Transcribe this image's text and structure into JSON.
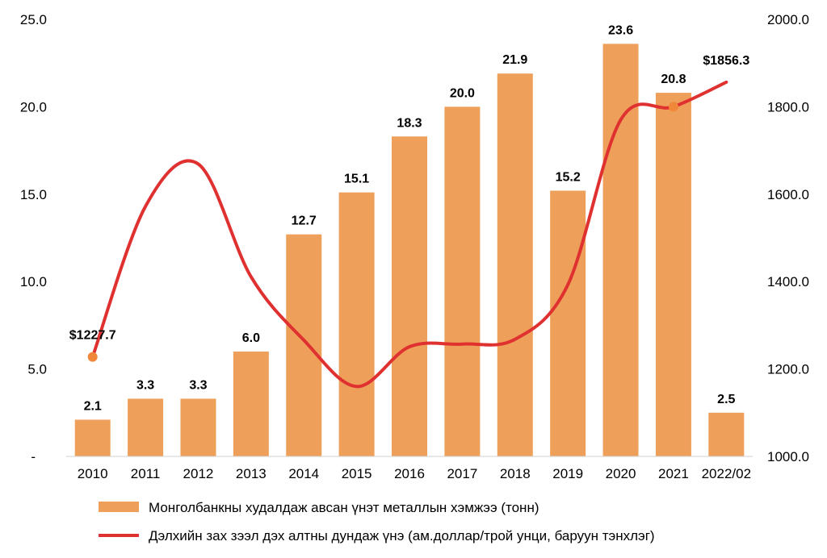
{
  "chart_data": {
    "type": "bar",
    "categories": [
      "2010",
      "2011",
      "2012",
      "2013",
      "2014",
      "2015",
      "2016",
      "2017",
      "2018",
      "2019",
      "2020",
      "2021",
      "2022/02"
    ],
    "series": [
      {
        "name": "Монголбанкны худалдаж авсан үнэт металлын хэмжээ (тонн)",
        "type": "bar",
        "axis": "left",
        "color": "#eea05a",
        "values": [
          2.1,
          3.3,
          3.3,
          6.0,
          12.7,
          15.1,
          18.3,
          20.0,
          21.9,
          15.2,
          23.6,
          20.8,
          2.5
        ],
        "labels": [
          "2.1",
          "3.3",
          "3.3",
          "6.0",
          "12.7",
          "15.1",
          "18.3",
          "20.0",
          "21.9",
          "15.2",
          "23.6",
          "20.8",
          "2.5"
        ]
      },
      {
        "name": "Дэлхийн зах зээл дэх алтны дундаж үнэ (ам.доллар/трой унци, баруун тэнхлэг)",
        "type": "line",
        "axis": "right",
        "color": "#e03131",
        "marker_color": "#f0873a",
        "values": [
          1227.7,
          1572,
          1669,
          1411,
          1266,
          1160,
          1251,
          1257,
          1268,
          1393,
          1770,
          1800,
          1856.3
        ],
        "point_labels": [
          {
            "index": 0,
            "text": "$1227.7"
          },
          {
            "index": 12,
            "text": "$1856.3"
          }
        ],
        "markers": [
          0,
          11
        ]
      }
    ],
    "y_left": {
      "min": 0,
      "max": 25,
      "ticks": [
        0,
        5,
        10,
        15,
        20,
        25
      ],
      "tick_labels": [
        "-",
        "5.0",
        "10.0",
        "15.0",
        "20.0",
        "25.0"
      ]
    },
    "y_right": {
      "min": 1000,
      "max": 2000,
      "ticks": [
        1000,
        1200,
        1400,
        1600,
        1800,
        2000
      ],
      "tick_labels": [
        "1000.0",
        "1200.0",
        "1400.0",
        "1600.0",
        "1800.0",
        "2000.0"
      ]
    },
    "grid": false,
    "legend_position": "bottom"
  }
}
